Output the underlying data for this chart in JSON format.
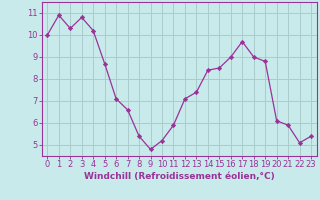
{
  "x": [
    0,
    1,
    2,
    3,
    4,
    5,
    6,
    7,
    8,
    9,
    10,
    11,
    12,
    13,
    14,
    15,
    16,
    17,
    18,
    19,
    20,
    21,
    22,
    23
  ],
  "y": [
    10.0,
    10.9,
    10.3,
    10.8,
    10.2,
    8.7,
    7.1,
    6.6,
    5.4,
    4.8,
    5.2,
    5.9,
    7.1,
    7.4,
    8.4,
    8.5,
    9.0,
    9.7,
    9.0,
    8.8,
    6.1,
    5.9,
    5.1,
    5.4
  ],
  "line_color": "#993399",
  "marker": "D",
  "marker_size": 2.2,
  "bg_color": "#c8eaea",
  "grid_color": "#aacccc",
  "axis_color": "#993399",
  "tick_color": "#993399",
  "xlabel": "Windchill (Refroidissement éolien,°C)",
  "ylim": [
    4.5,
    11.5
  ],
  "xlim": [
    -0.5,
    23.5
  ],
  "yticks": [
    5,
    6,
    7,
    8,
    9,
    10,
    11
  ],
  "xticks": [
    0,
    1,
    2,
    3,
    4,
    5,
    6,
    7,
    8,
    9,
    10,
    11,
    12,
    13,
    14,
    15,
    16,
    17,
    18,
    19,
    20,
    21,
    22,
    23
  ],
  "font_color": "#993399",
  "label_fontsize": 6.5,
  "tick_fontsize": 6.0,
  "linewidth": 0.9
}
